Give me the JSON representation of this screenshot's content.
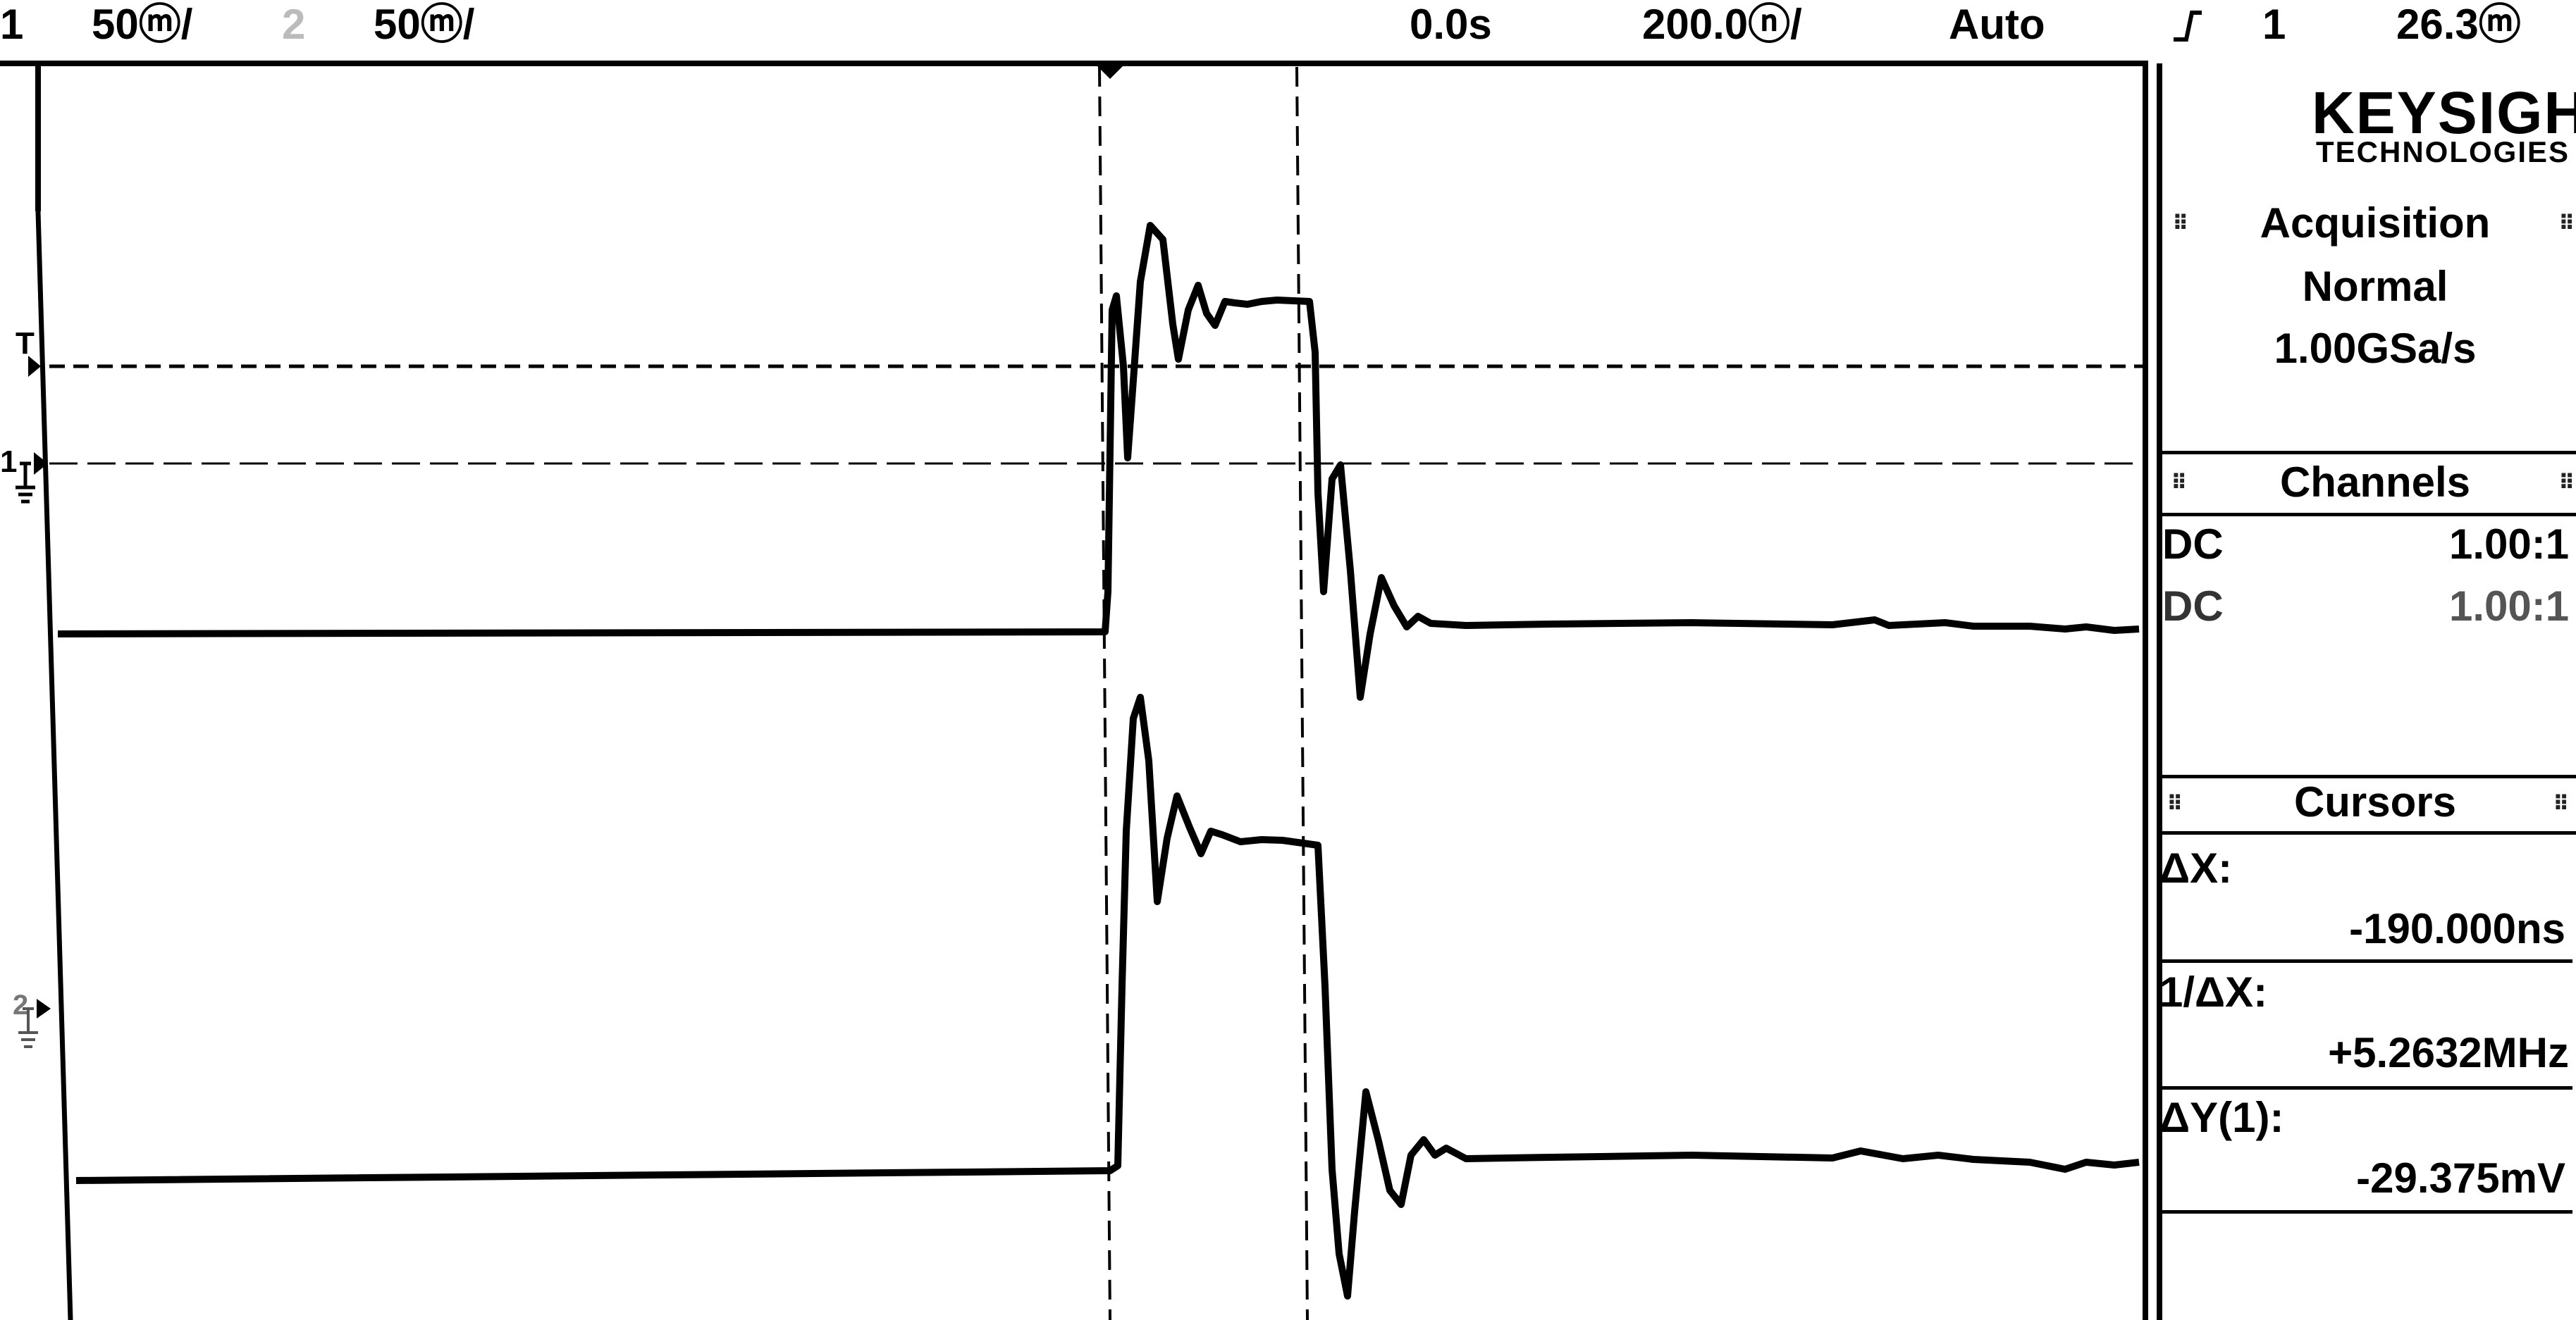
{
  "header": {
    "ch1_number": "1",
    "ch1_scale": "50ⓜ/",
    "ch2_number": "2",
    "ch2_scale": "50ⓜ/",
    "time_position": "0.0s",
    "time_scale": "200.0ⓝ/",
    "trigger_mode": "Auto",
    "trigger_slope_icon": "rising-edge-icon",
    "trigger_source": "1",
    "trigger_level": "26.3ⓜ"
  },
  "brand": {
    "name": "KEYSIGHT",
    "subtitle": "TECHNOLOGIES"
  },
  "acquisition": {
    "title": "Acquisition",
    "mode": "Normal",
    "sample_rate": "1.00GSa/s"
  },
  "channels": {
    "title": "Channels",
    "rows": [
      {
        "coupling": "DC",
        "probe": "1.00:1"
      },
      {
        "coupling": "DC",
        "probe": "1.00:1"
      }
    ]
  },
  "cursors": {
    "title": "Cursors",
    "dx_label": "ΔX:",
    "dx_value": "-190.000ns",
    "inv_dx_label": "1/ΔX:",
    "inv_dx_value": "+5.2632MHz",
    "dy_label": "ΔY(1):",
    "dy_value": "-29.375mV"
  },
  "markers": {
    "trigger_label": "T",
    "ch1_ground_label": "1",
    "ch2_ground_label": "2"
  }
}
